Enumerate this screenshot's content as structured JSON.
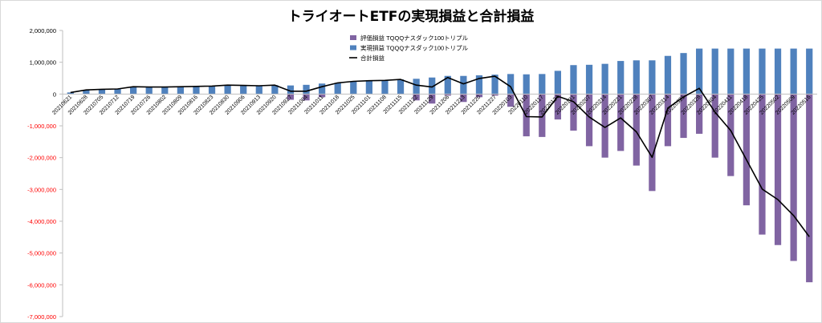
{
  "chart_data": {
    "type": "bar",
    "title": "トライオートETFの実現損益と合計損益",
    "legend": [
      "評価損益 TQQQナスダック100トリプル",
      "実現損益 TQQQナスダック100トリプル",
      "合計損益"
    ],
    "legend_position": "top-center",
    "colors": {
      "evaluation": "#8064a2",
      "realized": "#4f81bd",
      "total": "#000000",
      "negative_tick": "#ff0000"
    },
    "ylim": [
      -7000000,
      2000000
    ],
    "yticks": [
      {
        "v": 2000000,
        "label": "2,000,000"
      },
      {
        "v": 1000000,
        "label": "1,000,000"
      },
      {
        "v": 0,
        "label": "0"
      },
      {
        "v": -1000000,
        "label": "-1,000,000"
      },
      {
        "v": -2000000,
        "label": "-2,000,000"
      },
      {
        "v": -3000000,
        "label": "-3,000,000"
      },
      {
        "v": -4000000,
        "label": "-4,000,000"
      },
      {
        "v": -5000000,
        "label": "-5,000,000"
      },
      {
        "v": -6000000,
        "label": "-6,000,000"
      },
      {
        "v": -7000000,
        "label": "-7,000,000"
      }
    ],
    "x_labels": [
      "20210621",
      "20210628",
      "20210705",
      "20210712",
      "20210719",
      "20210726",
      "20210802",
      "20210809",
      "20210816",
      "20210823",
      "20210830",
      "20210906",
      "20210913",
      "20210920",
      "20210927",
      "20211004",
      "20211011",
      "20211018",
      "20211025",
      "20211101",
      "20211108",
      "20211115",
      "20211122",
      "20211129",
      "20211206",
      "20211213",
      "20211220",
      "20211227",
      "20220103",
      "20220110",
      "20220117",
      "20220124",
      "20220131",
      "20220207",
      "20220214",
      "20220221",
      "20220228",
      "20220307",
      "20220314",
      "20220321",
      "20220328",
      "20220404",
      "20220411",
      "20220418",
      "20220425",
      "20220502",
      "20220509",
      "20220516"
    ],
    "x_label_every": 1,
    "realized": [
      50000,
      130000,
      150000,
      160000,
      230000,
      220000,
      220000,
      230000,
      240000,
      250000,
      280000,
      270000,
      260000,
      280000,
      270000,
      290000,
      330000,
      350000,
      400000,
      420000,
      430000,
      460000,
      480000,
      520000,
      570000,
      570000,
      590000,
      610000,
      630000,
      620000,
      630000,
      730000,
      910000,
      920000,
      950000,
      1040000,
      1060000,
      1060000,
      1200000,
      1290000,
      1430000,
      1430000,
      1430000,
      1430000,
      1430000,
      1430000,
      1430000,
      1430000
    ],
    "evaluation": [
      0,
      0,
      0,
      0,
      0,
      0,
      0,
      0,
      0,
      0,
      0,
      0,
      0,
      0,
      -180000,
      -200000,
      -100000,
      0,
      0,
      0,
      0,
      0,
      -200000,
      -300000,
      -50000,
      -250000,
      -100000,
      -50000,
      -400000,
      -1330000,
      -1350000,
      -800000,
      -1150000,
      -1640000,
      -2000000,
      -1790000,
      -2250000,
      -3050000,
      -1640000,
      -1380000,
      -1250000,
      -2000000,
      -2580000,
      -3500000,
      -4420000,
      -4750000,
      -5250000,
      -5920000
    ],
    "total": [
      50000,
      130000,
      150000,
      160000,
      230000,
      220000,
      220000,
      230000,
      240000,
      250000,
      280000,
      270000,
      260000,
      280000,
      90000,
      90000,
      230000,
      350000,
      400000,
      420000,
      430000,
      460000,
      280000,
      220000,
      520000,
      320000,
      490000,
      560000,
      230000,
      -710000,
      -720000,
      -70000,
      -240000,
      -720000,
      -1050000,
      -750000,
      -1190000,
      -1990000,
      -440000,
      -90000,
      180000,
      -570000,
      -1150000,
      -2070000,
      -2990000,
      -3320000,
      -3820000,
      -4490000
    ]
  }
}
